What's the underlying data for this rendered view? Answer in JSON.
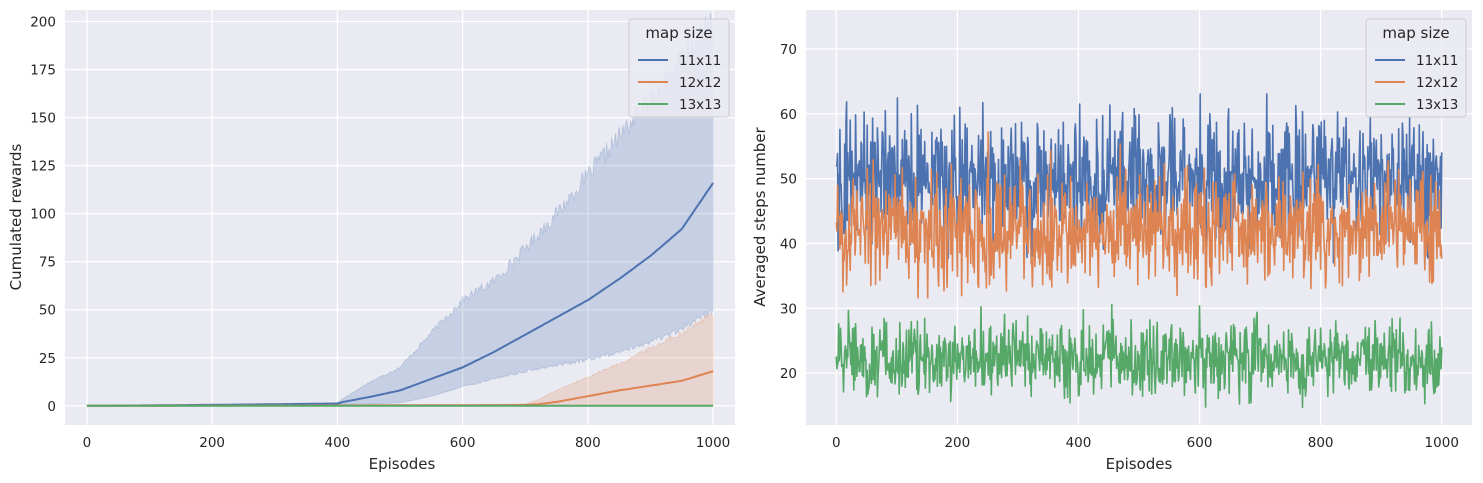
{
  "chart_data": [
    {
      "type": "line",
      "xlabel": "Episodes",
      "ylabel": "Cumulated rewards",
      "xlim": [
        -35,
        1035
      ],
      "ylim": [
        -10,
        206
      ],
      "xticks": [
        0,
        200,
        400,
        600,
        800,
        1000
      ],
      "yticks": [
        0,
        25,
        50,
        75,
        100,
        125,
        150,
        175,
        200
      ],
      "grid": true,
      "legend": {
        "title": "map size",
        "position": "top-right"
      },
      "series": [
        {
          "name": "11x11",
          "color": "#4c72b0",
          "x": [
            0,
            100,
            200,
            300,
            400,
            410,
            450,
            500,
            550,
            600,
            650,
            700,
            750,
            800,
            850,
            900,
            950,
            1000
          ],
          "y": [
            0,
            0.2,
            0.5,
            0.8,
            1.2,
            2.0,
            4.5,
            8.0,
            14.0,
            20.0,
            28.0,
            37.0,
            46.0,
            55.0,
            66.0,
            78.0,
            92.0,
            116.0
          ],
          "band_upper": [
            0,
            0.3,
            0.6,
            1.0,
            1.4,
            4.0,
            12.0,
            20.0,
            38.0,
            55.0,
            65.0,
            82.0,
            100.0,
            120.0,
            140.0,
            160.0,
            180.0,
            200.0
          ],
          "band_lower": [
            0,
            0.1,
            0.3,
            0.5,
            0.8,
            0.8,
            1.0,
            1.5,
            5.0,
            10.0,
            14.0,
            18.0,
            21.0,
            24.0,
            28.0,
            33.0,
            40.0,
            50.0
          ]
        },
        {
          "name": "12x12",
          "color": "#dd8452",
          "x": [
            0,
            200,
            400,
            600,
            700,
            720,
            750,
            800,
            850,
            900,
            950,
            1000
          ],
          "y": [
            0,
            0.1,
            0.2,
            0.3,
            0.4,
            0.8,
            2.0,
            5.0,
            8.0,
            10.5,
            13.0,
            18.0
          ],
          "band_upper": [
            0,
            0.2,
            0.4,
            0.6,
            1.0,
            3.0,
            8.0,
            15.0,
            22.0,
            30.0,
            38.0,
            48.0
          ],
          "band_lower": [
            0,
            0,
            0,
            0,
            0,
            0,
            0,
            0,
            0,
            0,
            0,
            0
          ]
        },
        {
          "name": "13x13",
          "color": "#55a868",
          "x": [
            0,
            1000
          ],
          "y": [
            0,
            0
          ]
        }
      ]
    },
    {
      "type": "line",
      "xlabel": "Episodes",
      "ylabel": "Averaged steps number",
      "xlim": [
        -50,
        1050
      ],
      "ylim": [
        12,
        76
      ],
      "xticks": [
        0,
        200,
        400,
        600,
        800,
        1000
      ],
      "yticks": [
        20,
        30,
        40,
        50,
        60,
        70
      ],
      "grid": true,
      "legend": {
        "title": "map size",
        "position": "top-right"
      },
      "points_per_series": 1001,
      "series": [
        {
          "name": "11x11",
          "color": "#4c72b0",
          "mean": 50,
          "spread": 7,
          "min": 34,
          "max": 72.2
        },
        {
          "name": "12x12",
          "color": "#dd8452",
          "mean": 42,
          "spread": 6,
          "min": 26,
          "max": 61.5
        },
        {
          "name": "13x13",
          "color": "#55a868",
          "mean": 22,
          "spread": 4,
          "min": 13.5,
          "max": 35.0
        }
      ]
    }
  ]
}
